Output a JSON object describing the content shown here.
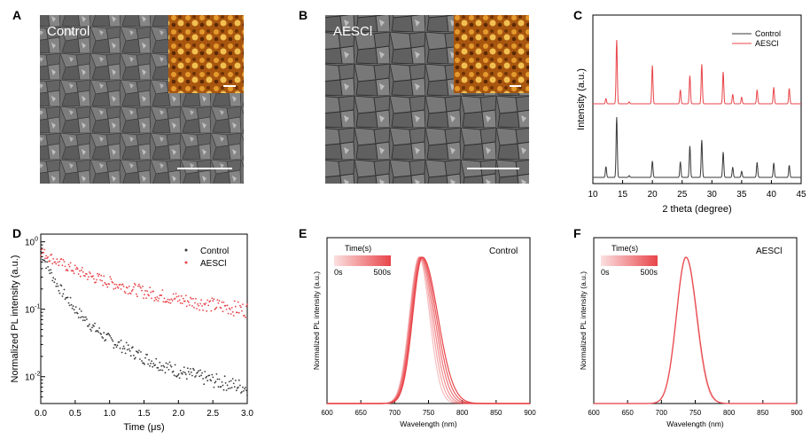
{
  "colors": {
    "control": "#3a3a3a",
    "aescl": "#e8454a",
    "afm_dark": "#4a1f05",
    "afm_light": "#f0b040"
  },
  "panels": {
    "A": {
      "letter": "A",
      "image_label": "Control"
    },
    "B": {
      "letter": "B",
      "image_label": "AESCl"
    }
  },
  "chart_data": [
    {
      "panel": "C",
      "type": "line",
      "title": "",
      "xlabel": "2 theta (degree)",
      "ylabel": "Intensity (a.u.)",
      "xlim": [
        10,
        45
      ],
      "xticks": [
        "10",
        "15",
        "20",
        "25",
        "30",
        "35",
        "40",
        "45"
      ],
      "legend": "top-right",
      "peaks": [
        {
          "x": 12.2,
          "control": 0.18,
          "aescl": 0.08
        },
        {
          "x": 14.0,
          "control": 1.0,
          "aescl": 1.0
        },
        {
          "x": 16.1,
          "control": 0.03,
          "aescl": 0.03
        },
        {
          "x": 20.0,
          "control": 0.27,
          "aescl": 0.6
        },
        {
          "x": 24.7,
          "control": 0.26,
          "aescl": 0.22
        },
        {
          "x": 26.3,
          "control": 0.52,
          "aescl": 0.44
        },
        {
          "x": 28.3,
          "control": 0.62,
          "aescl": 0.62
        },
        {
          "x": 31.9,
          "control": 0.42,
          "aescl": 0.5
        },
        {
          "x": 33.5,
          "control": 0.17,
          "aescl": 0.15
        },
        {
          "x": 35.0,
          "control": 0.1,
          "aescl": 0.1
        },
        {
          "x": 37.6,
          "control": 0.25,
          "aescl": 0.22
        },
        {
          "x": 40.4,
          "control": 0.24,
          "aescl": 0.26
        },
        {
          "x": 43.0,
          "control": 0.2,
          "aescl": 0.24
        }
      ],
      "series": [
        {
          "name": "Control"
        },
        {
          "name": "AESCl"
        }
      ]
    },
    {
      "panel": "D",
      "type": "scatter",
      "title": "",
      "xlabel": "Time (μs)",
      "ylabel": "Normalized PL intensity (a.u.)",
      "xlim": [
        0,
        3.0
      ],
      "ylim": [
        0.004,
        1.3
      ],
      "yscale": "log",
      "xticks": [
        "0.0",
        "0.5",
        "1.0",
        "1.5",
        "2.0",
        "2.5",
        "3.0"
      ],
      "legend": "top-right",
      "series": [
        {
          "name": "Control",
          "x": [
            0,
            0.1,
            0.25,
            0.5,
            0.75,
            1.0,
            1.5,
            2.0,
            2.5,
            3.0
          ],
          "y": [
            0.72,
            0.42,
            0.22,
            0.1,
            0.055,
            0.035,
            0.019,
            0.012,
            0.0088,
            0.0068
          ]
        },
        {
          "name": "AESCl",
          "x": [
            0,
            0.25,
            0.5,
            0.75,
            1.0,
            1.5,
            2.0,
            2.5,
            3.0
          ],
          "y": [
            0.72,
            0.5,
            0.38,
            0.3,
            0.25,
            0.18,
            0.14,
            0.115,
            0.097
          ]
        }
      ]
    },
    {
      "panel": "E",
      "type": "line",
      "title": "",
      "annotation": "Control",
      "xlabel": "Wavelength (nm)",
      "ylabel": "Normalized PL intensity (a.u.)",
      "xlim": [
        600,
        900
      ],
      "xticks": [
        "600",
        "650",
        "700",
        "750",
        "800",
        "850",
        "900"
      ],
      "colorbar": {
        "title": "Time(s)",
        "min_label": "0s",
        "max_label": "500s"
      },
      "peak_nm": 736,
      "spectra": [
        {
          "time_s": 0,
          "peak_nm": 736,
          "width_left_nm": 20,
          "width_right_nm": 22
        },
        {
          "time_s": 100,
          "peak_nm": 737,
          "width_left_nm": 20,
          "width_right_nm": 24
        },
        {
          "time_s": 200,
          "peak_nm": 738,
          "width_left_nm": 20,
          "width_right_nm": 26
        },
        {
          "time_s": 300,
          "peak_nm": 739,
          "width_left_nm": 20,
          "width_right_nm": 28
        },
        {
          "time_s": 400,
          "peak_nm": 740,
          "width_left_nm": 20,
          "width_right_nm": 30
        },
        {
          "time_s": 500,
          "peak_nm": 741,
          "width_left_nm": 20,
          "width_right_nm": 32
        }
      ]
    },
    {
      "panel": "F",
      "type": "line",
      "title": "",
      "annotation": "AESCl",
      "xlabel": "Wavelength (nm)",
      "ylabel": "Normalized PL intensity (a.u.)",
      "xlim": [
        600,
        900
      ],
      "xticks": [
        "600",
        "650",
        "700",
        "750",
        "800",
        "850",
        "900"
      ],
      "colorbar": {
        "title": "Time(s)",
        "min_label": "0s",
        "max_label": "500s"
      },
      "peak_nm": 736,
      "spectra": [
        {
          "time_s": 0,
          "peak_nm": 736,
          "width_left_nm": 20,
          "width_right_nm": 22
        },
        {
          "time_s": 500,
          "peak_nm": 736.5,
          "width_left_nm": 20,
          "width_right_nm": 22.5
        }
      ]
    }
  ]
}
